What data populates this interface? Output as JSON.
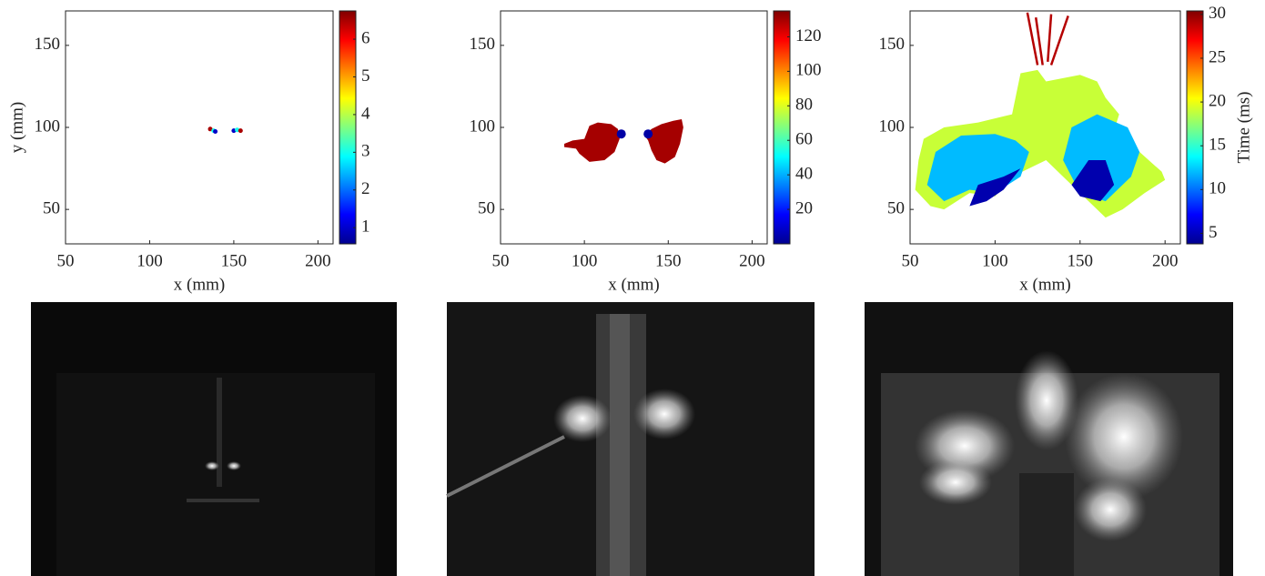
{
  "chart_data": [
    {
      "type": "map",
      "xlabel": "x (mm)",
      "ylabel": "y (mm)",
      "xlim": [
        50,
        209
      ],
      "ylim": [
        29,
        171
      ],
      "xticks": [
        50,
        100,
        150,
        200
      ],
      "yticks": [
        50,
        100,
        150
      ],
      "clim": [
        0.57,
        6.75
      ],
      "cticks": [
        1,
        2,
        3,
        4,
        5,
        6
      ],
      "points": [
        {
          "x": 136,
          "y": 99,
          "value": 6.5
        },
        {
          "x": 138,
          "y": 98,
          "value": 3
        },
        {
          "x": 139,
          "y": 97.5,
          "value": 1
        },
        {
          "x": 150,
          "y": 98,
          "value": 1
        },
        {
          "x": 152,
          "y": 98.5,
          "value": 3
        },
        {
          "x": 154,
          "y": 98,
          "value": 6.5
        }
      ],
      "regions": [],
      "lines": []
    },
    {
      "type": "map",
      "xlabel": "x (mm)",
      "xlim": [
        50,
        209
      ],
      "ylim": [
        29,
        171
      ],
      "xticks": [
        50,
        100,
        150,
        200
      ],
      "yticks": [
        50,
        100,
        150
      ],
      "clim": [
        0,
        135
      ],
      "cticks": [
        20,
        40,
        60,
        80,
        100,
        120
      ],
      "regions": [
        {
          "x": [
            88,
            95,
            97,
            103,
            112,
            118,
            121,
            120,
            116,
            108,
            103,
            100,
            93,
            88
          ],
          "y": [
            88,
            87,
            84,
            79,
            80,
            85,
            93,
            99,
            102,
            103,
            101,
            93,
            92,
            90
          ],
          "value": 130
        },
        {
          "x": [
            136,
            140,
            146,
            153,
            158,
            159,
            157,
            154,
            148,
            143,
            140,
            138
          ],
          "y": [
            95,
            99,
            102,
            104,
            105,
            100,
            90,
            82,
            78,
            80,
            86,
            92
          ],
          "value": 130
        }
      ],
      "points": [
        {
          "x": 122,
          "y": 96,
          "value": 5
        },
        {
          "x": 138,
          "y": 96,
          "value": 5
        }
      ],
      "lines": []
    },
    {
      "type": "map",
      "xlabel": "x (mm)",
      "clabel": "Time (ms)",
      "xlim": [
        50,
        209
      ],
      "ylim": [
        29,
        171
      ],
      "xticks": [
        50,
        100,
        150,
        200
      ],
      "yticks": [
        50,
        100,
        150
      ],
      "clim": [
        3.8,
        30.4
      ],
      "cticks": [
        5,
        10,
        15,
        20,
        25,
        30
      ],
      "regions": [
        {
          "x": [
            53,
            55,
            58,
            70,
            90,
            110,
            112,
            115,
            125,
            130,
            140,
            150,
            160,
            165,
            173,
            170,
            185,
            198,
            200,
            188,
            175,
            165,
            155,
            145,
            130,
            122,
            110,
            100,
            85,
            70,
            62
          ],
          "y": [
            62,
            80,
            93,
            100,
            103,
            108,
            118,
            133,
            135,
            128,
            130,
            132,
            128,
            118,
            108,
            98,
            85,
            73,
            68,
            60,
            50,
            45,
            55,
            65,
            80,
            76,
            70,
            58,
            60,
            50,
            52
          ],
          "value": 19
        },
        {
          "x": [
            60,
            65,
            80,
            100,
            112,
            120,
            115,
            100,
            85,
            70
          ],
          "y": [
            65,
            85,
            95,
            96,
            92,
            85,
            70,
            60,
            62,
            55
          ],
          "value": 12
        },
        {
          "x": [
            140,
            145,
            160,
            178,
            185,
            180,
            165,
            150
          ],
          "y": [
            80,
            100,
            108,
            100,
            85,
            70,
            55,
            60
          ],
          "value": 12
        },
        {
          "x": [
            85,
            90,
            105,
            115,
            105,
            95
          ],
          "y": [
            52,
            65,
            70,
            75,
            62,
            55
          ],
          "value": 5
        },
        {
          "x": [
            145,
            155,
            165,
            170,
            162,
            150
          ],
          "y": [
            65,
            80,
            80,
            65,
            55,
            58
          ],
          "value": 5
        }
      ],
      "lines": [
        {
          "x": [
            125,
            119
          ],
          "y": [
            138,
            170
          ],
          "value": 29
        },
        {
          "x": [
            128,
            124
          ],
          "y": [
            138,
            167
          ],
          "value": 29
        },
        {
          "x": [
            131,
            133
          ],
          "y": [
            140,
            169
          ],
          "value": 29
        },
        {
          "x": [
            133,
            143
          ],
          "y": [
            138,
            168
          ],
          "value": 29
        }
      ],
      "points": []
    }
  ]
}
